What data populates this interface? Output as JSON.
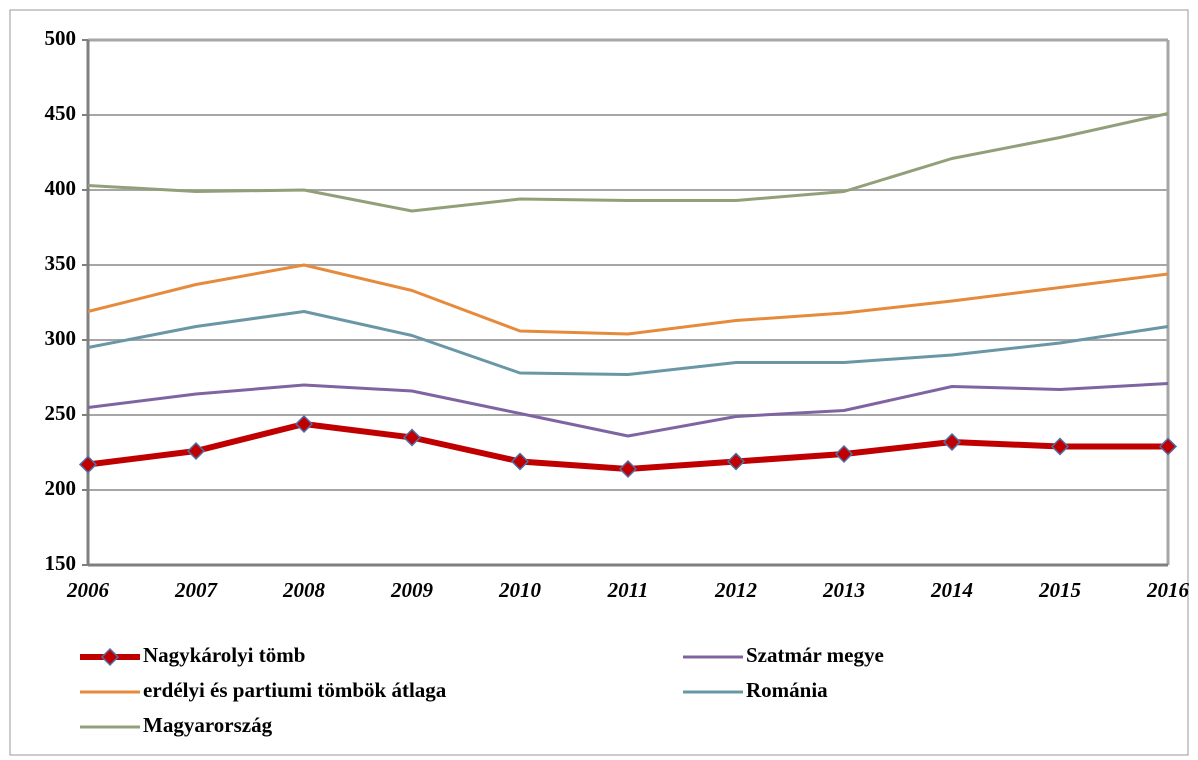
{
  "chart_data": {
    "type": "line",
    "categories": [
      "2006",
      "2007",
      "2008",
      "2009",
      "2010",
      "2011",
      "2012",
      "2013",
      "2014",
      "2015",
      "2016"
    ],
    "series": [
      {
        "name": "Nagykárolyi tömb",
        "color": "#c00000",
        "marker": "diamond",
        "values": [
          217,
          226,
          244,
          235,
          219,
          214,
          219,
          224,
          232,
          229,
          229
        ]
      },
      {
        "name": "Szatmár megye",
        "color": "#8064a2",
        "values": [
          255,
          264,
          270,
          266,
          251,
          236,
          249,
          253,
          269,
          267,
          271
        ]
      },
      {
        "name": "erdélyi és partiumi tömbök átlaga",
        "color": "#e68a3c",
        "values": [
          319,
          337,
          350,
          333,
          306,
          304,
          313,
          318,
          326,
          335,
          344
        ]
      },
      {
        "name": "Románia",
        "color": "#6a97a6",
        "values": [
          295,
          309,
          319,
          303,
          278,
          277,
          285,
          285,
          290,
          298,
          309
        ]
      },
      {
        "name": "Magyarország",
        "color": "#92a079",
        "values": [
          403,
          399,
          400,
          386,
          394,
          393,
          393,
          399,
          421,
          435,
          451
        ]
      }
    ],
    "ylim": [
      150,
      500
    ],
    "yticks": [
      150,
      200,
      250,
      300,
      350,
      400,
      450,
      500
    ],
    "grid": true,
    "legend": "bottom"
  }
}
